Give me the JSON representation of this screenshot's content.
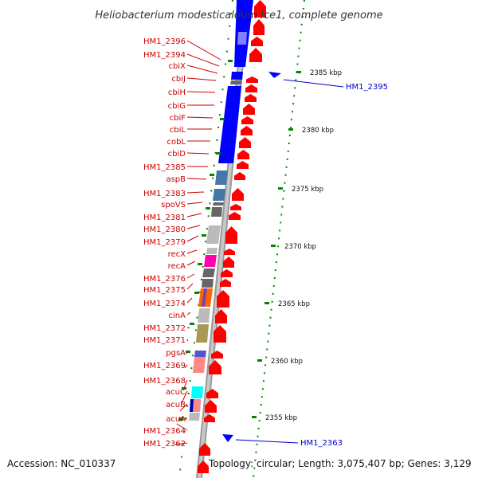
{
  "title": "Heliobacterium modesticaldum Ice1, complete genome",
  "footer": {
    "accession": "Accession: NC_010337",
    "summary": "Topology: circular; Length: 3,075,407 bp; Genes: 3,129"
  },
  "colors": {
    "label_red": "#cc0000",
    "label_blue": "#0000cc",
    "arrow_red": "#ff0000",
    "cds_blue": "#0000ff",
    "tick_green": "#008800",
    "backbone_gray": "#8a8a8a"
  },
  "left_labels": [
    "HM1_2396",
    "HM1_2394",
    "cbiX",
    "cbiJ",
    "cbiH",
    "cbiG",
    "cbiF",
    "cbiL",
    "cobL",
    "cbiD",
    "HM1_2385",
    "aspB",
    "HM1_2383",
    "spoVS",
    "HM1_2381",
    "HM1_2380",
    "HM1_2379",
    "recX",
    "recA",
    "HM1_2376",
    "HM1_2375",
    "HM1_2374",
    "cinA",
    "HM1_2372",
    "HM1_2371",
    "pgsA",
    "HM1_2369",
    "HM1_2368",
    "acuC",
    "acuB",
    "acuA",
    "HM1_2364",
    "HM1_2362"
  ],
  "right_labels": [
    "HM1_2395",
    "HM1_2363"
  ],
  "kbp_labels": [
    "2385 kbp",
    "2380 kbp",
    "2375 kbp",
    "2370 kbp",
    "2365 kbp",
    "2360 kbp",
    "2355 kbp"
  ]
}
